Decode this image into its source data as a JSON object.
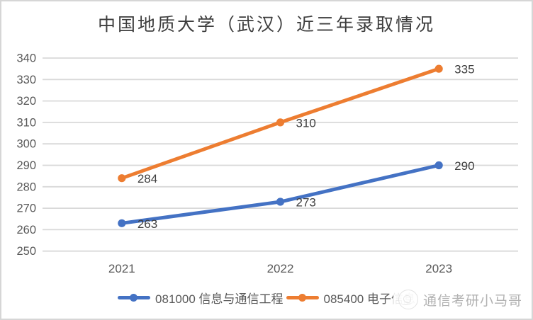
{
  "frame": {
    "background": "#ffffff",
    "border_color": "#d6d6d6"
  },
  "chart_data": {
    "type": "line",
    "title": "中国地质大学（武汉）近三年录取情况",
    "categories": [
      "2021",
      "2022",
      "2023"
    ],
    "series": [
      {
        "name": "081000 信息与通信工程",
        "values": [
          263,
          273,
          290
        ],
        "color": "#4472C4"
      },
      {
        "name": "085400 电子信息",
        "values": [
          284,
          310,
          335
        ],
        "color": "#ED7D31"
      }
    ],
    "ylim": [
      250,
      340
    ],
    "yticks": [
      250,
      260,
      270,
      280,
      290,
      300,
      310,
      320,
      330,
      340
    ],
    "grid": true,
    "gridline_color": "#d9d9d9",
    "axis_label_color": "#595959",
    "data_label_color": "#3f3f3f",
    "data_labels": true,
    "legend_position": "bottom",
    "xlabel": "",
    "ylabel": ""
  },
  "watermark": {
    "text": "通信考研小马哥",
    "logo": "horse-avatar-icon",
    "text_color": "#b2b2b2"
  }
}
